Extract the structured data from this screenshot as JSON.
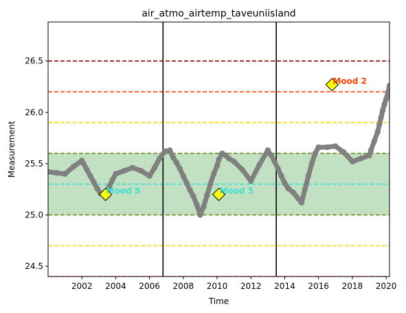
{
  "chart_data": {
    "type": "line",
    "title": "air_atmo_airtemp_taveuniisland",
    "xlabel": "Time",
    "ylabel": "Measurement",
    "xlim": [
      2000.0,
      2020.2
    ],
    "ylim": [
      24.4,
      26.88
    ],
    "x_ticks": [
      2002,
      2004,
      2006,
      2008,
      2010,
      2012,
      2014,
      2016,
      2018,
      2020
    ],
    "y_ticks": [
      24.5,
      25.0,
      25.5,
      26.0,
      26.5
    ],
    "grid": false,
    "legend": "none",
    "series": [
      {
        "color": "#808080",
        "marker": "circle",
        "x": [
          2000.0,
          2000.5,
          2001.0,
          2001.5,
          2002.0,
          2002.1,
          2002.3,
          2002.5,
          2002.7,
          2002.9,
          2003.1,
          2003.3,
          2003.4,
          2003.6,
          2003.8,
          2004.0,
          2004.5,
          2005.0,
          2005.5,
          2006.0,
          2006.3,
          2006.6,
          2006.9,
          2007.2,
          2007.4,
          2007.6,
          2007.8,
          2008.0,
          2008.2,
          2008.4,
          2008.6,
          2008.8,
          2009.0,
          2009.2,
          2009.4,
          2009.6,
          2009.8,
          2010.0,
          2010.1,
          2010.3,
          2010.5,
          2010.7,
          2011.0,
          2011.5,
          2012.0,
          2012.5,
          2013.0,
          2013.2,
          2013.4,
          2013.6,
          2013.8,
          2014.0,
          2014.2,
          2014.5,
          2014.8,
          2015.0,
          2015.2,
          2015.4,
          2015.6,
          2015.8,
          2016.0,
          2016.5,
          2017.0,
          2017.5,
          2018.0,
          2018.5,
          2019.0,
          2019.1,
          2019.3,
          2019.5,
          2019.6,
          2019.7,
          2019.8,
          2019.9,
          2020.0,
          2020.1,
          2020.2
        ],
        "values": [
          25.42,
          25.41,
          25.4,
          25.47,
          25.53,
          25.5,
          25.44,
          25.38,
          25.32,
          25.26,
          25.21,
          25.2,
          25.22,
          25.27,
          25.34,
          25.4,
          25.43,
          25.46,
          25.43,
          25.38,
          25.46,
          25.55,
          25.62,
          25.63,
          25.56,
          25.51,
          25.45,
          25.38,
          25.31,
          25.24,
          25.18,
          25.1,
          25.0,
          25.08,
          25.19,
          25.3,
          25.4,
          25.48,
          25.54,
          25.6,
          25.58,
          25.55,
          25.52,
          25.44,
          25.33,
          25.49,
          25.63,
          25.58,
          25.52,
          25.45,
          25.38,
          25.31,
          25.26,
          25.22,
          25.16,
          25.12,
          25.25,
          25.38,
          25.5,
          25.6,
          25.66,
          25.66,
          25.67,
          25.61,
          25.52,
          25.55,
          25.58,
          25.63,
          25.72,
          25.81,
          25.88,
          25.95,
          26.02,
          26.08,
          26.13,
          26.19,
          26.26
        ]
      }
    ],
    "shaded_band": {
      "y_min": 25.0,
      "y_max": 25.6,
      "color": "#c2e0c2"
    },
    "horizontal_lines": [
      {
        "y": 26.5,
        "color": "#8b0000",
        "style": "dashed"
      },
      {
        "y": 26.2,
        "color": "#ff4500",
        "style": "dashed"
      },
      {
        "y": 25.9,
        "color": "#ffd700",
        "style": "dashed"
      },
      {
        "y": 25.6,
        "color": "#6b8e23",
        "style": "dashed"
      },
      {
        "y": 25.3,
        "color": "#40e0d0",
        "style": "dashed"
      },
      {
        "y": 25.0,
        "color": "#6b8e23",
        "style": "dashed"
      },
      {
        "y": 24.7,
        "color": "#ffd700",
        "style": "dashed"
      },
      {
        "y": 24.4,
        "color": "#ff4500",
        "style": "dashed"
      }
    ],
    "vertical_lines": [
      {
        "x": 2006.8,
        "color": "#000000",
        "style": "solid"
      },
      {
        "x": 2013.5,
        "color": "#000000",
        "style": "solid"
      }
    ],
    "annotations": [
      {
        "x": 2003.4,
        "y": 25.2,
        "text": "Mood 5",
        "color": "#40e0d0",
        "marker_color": "#ffff00"
      },
      {
        "x": 2010.1,
        "y": 25.2,
        "text": "Mood 5",
        "color": "#40e0d0",
        "marker_color": "#ffff00"
      },
      {
        "x": 2016.8,
        "y": 26.27,
        "text": "Mood 2",
        "color": "#ff4500",
        "marker_color": "#ffff00"
      }
    ]
  }
}
